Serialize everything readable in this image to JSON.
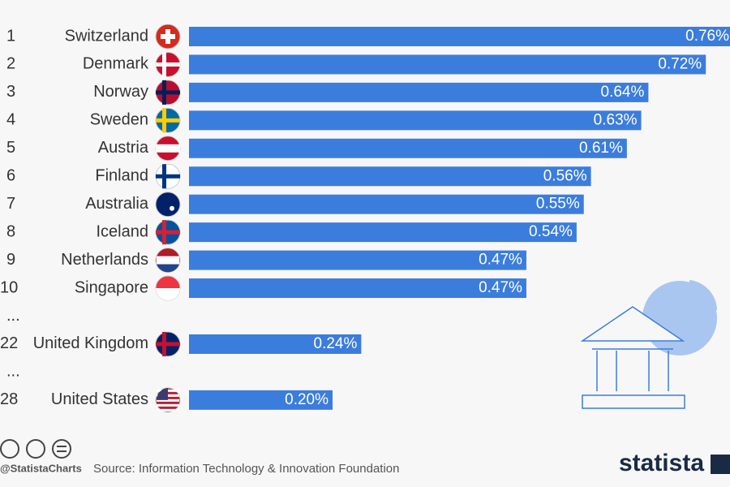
{
  "chart_data": {
    "type": "bar",
    "ranks": [
      "1",
      "2",
      "3",
      "4",
      "5",
      "6",
      "7",
      "8",
      "9",
      "10",
      "...",
      "22",
      "...",
      "28"
    ],
    "categories": [
      "Switzerland",
      "Denmark",
      "Norway",
      "Sweden",
      "Austria",
      "Finland",
      "Australia",
      "Iceland",
      "Netherlands",
      "Singapore",
      null,
      "United Kingdom",
      null,
      "United States"
    ],
    "values": [
      0.76,
      0.72,
      0.64,
      0.63,
      0.61,
      0.56,
      0.55,
      0.54,
      0.47,
      0.47,
      null,
      0.24,
      null,
      0.2
    ],
    "value_labels": [
      "0.76%",
      "0.72%",
      "0.64%",
      "0.63%",
      "0.61%",
      "0.56%",
      "0.55%",
      "0.54%",
      "0.47%",
      "0.47%",
      null,
      "0.24%",
      null,
      "0.20%"
    ],
    "color": "#3b7ddd",
    "xlim": [
      0,
      1
    ],
    "handle": "@StatistaCharts",
    "source": "Source: Information Technology & Innovation Foundation",
    "brand": "statista"
  }
}
